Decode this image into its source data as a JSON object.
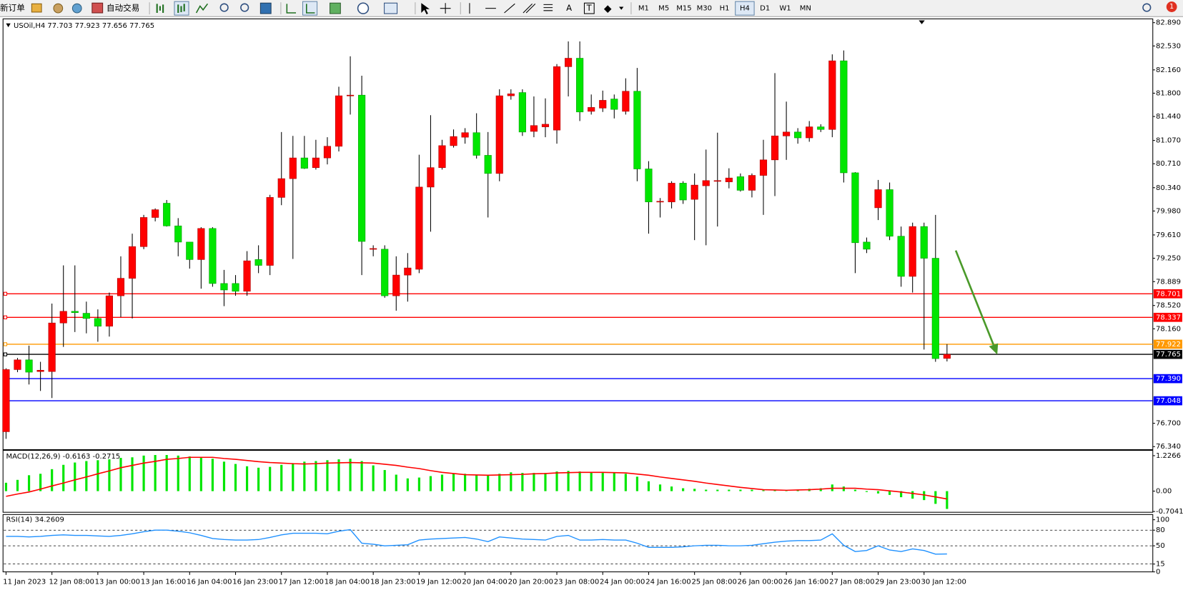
{
  "toolbar": {
    "new_order": "新订单",
    "auto_trading": "自动交易",
    "text_tools": [
      "A",
      "T"
    ],
    "timeframes": [
      "M1",
      "M5",
      "M15",
      "M30",
      "H1",
      "H4",
      "D1",
      "W1",
      "MN"
    ],
    "active_timeframe": "H4",
    "notifications": 1
  },
  "chart_data": [
    {
      "type": "candlestick",
      "title": "USOil,H4  77.703 77.923 77.656 77.765",
      "categories": [
        "11 Jan 2023",
        null,
        null,
        null,
        "12 Jan 08:00",
        null,
        null,
        null,
        "13 Jan 00:00",
        null,
        null,
        null,
        "13 Jan 16:00",
        null,
        null,
        null,
        "16 Jan 04:00",
        null,
        null,
        null,
        "16 Jan 23:00",
        null,
        null,
        null,
        "17 Jan 12:00",
        null,
        null,
        null,
        "18 Jan 04:00",
        null,
        null,
        null,
        "18 Jan 23:00",
        null,
        null,
        null,
        "19 Jan 12:00",
        null,
        null,
        null,
        "20 Jan 04:00",
        null,
        null,
        null,
        "20 Jan 20:00",
        null,
        null,
        null,
        "23 Jan 08:00",
        null,
        null,
        null,
        "24 Jan 00:00",
        null,
        null,
        null,
        "24 Jan 16:00",
        null,
        null,
        null,
        "25 Jan 08:00",
        null,
        null,
        null,
        "26 Jan 00:00",
        null,
        null,
        null,
        "26 Jan 16:00",
        null,
        null,
        null,
        "27 Jan 08:00",
        null,
        null,
        null,
        "29 Jan 23:00",
        null,
        null,
        null,
        "30 Jan 12:00",
        null,
        null
      ],
      "open": [
        76.57,
        77.53,
        77.68,
        77.5,
        77.5,
        78.25,
        78.43,
        78.4,
        78.32,
        78.2,
        78.67,
        78.94,
        79.43,
        79.88,
        80.1,
        79.75,
        79.5,
        79.23,
        79.71,
        78.86,
        78.86,
        78.74,
        79.23,
        79.14,
        80.19,
        80.48,
        80.8,
        80.65,
        80.8,
        80.98,
        81.76,
        81.77,
        79.39,
        79.39,
        78.67,
        78.99,
        79.08,
        80.35,
        80.65,
        80.99,
        81.12,
        81.19,
        80.84,
        80.56,
        81.76,
        81.81,
        81.21,
        81.28,
        81.23,
        82.21,
        82.34,
        81.52,
        81.57,
        81.71,
        81.52,
        81.83,
        80.63,
        80.12,
        80.12,
        80.41,
        80.16,
        80.37,
        80.44,
        80.43,
        80.51,
        80.3,
        80.53,
        80.77,
        81.14,
        81.2,
        81.11,
        81.28,
        81.24,
        82.3,
        80.57,
        79.5,
        80.03,
        80.31,
        79.59,
        78.97,
        79.74,
        79.25,
        77.703
      ],
      "high": [
        77.55,
        77.71,
        77.9,
        77.65,
        78.55,
        79.14,
        79.14,
        78.58,
        78.46,
        78.72,
        79.28,
        79.63,
        79.92,
        80.02,
        80.15,
        79.87,
        79.5,
        79.73,
        79.73,
        79.07,
        78.99,
        79.36,
        79.45,
        80.23,
        81.2,
        81.14,
        81.14,
        81.08,
        81.12,
        81.9,
        82.37,
        82.07,
        79.45,
        79.45,
        79.28,
        79.33,
        80.85,
        81.46,
        81.08,
        81.24,
        81.26,
        81.49,
        81.2,
        81.86,
        81.86,
        81.86,
        81.75,
        81.72,
        82.25,
        82.6,
        82.6,
        81.78,
        81.84,
        81.78,
        82.03,
        82.19,
        80.75,
        80.18,
        80.44,
        80.44,
        80.56,
        80.93,
        81.19,
        80.64,
        80.56,
        80.56,
        81.08,
        82.11,
        81.67,
        81.26,
        81.37,
        81.32,
        82.4,
        82.46,
        80.58,
        79.57,
        80.46,
        80.42,
        79.74,
        79.8,
        79.8,
        79.92,
        77.923
      ],
      "low": [
        76.46,
        77.49,
        77.3,
        77.2,
        77.09,
        77.88,
        78.11,
        78.09,
        77.96,
        78.04,
        78.34,
        78.32,
        79.39,
        79.82,
        79.74,
        79.28,
        79.09,
        78.78,
        78.81,
        78.51,
        78.67,
        78.67,
        79.02,
        78.99,
        80.07,
        79.24,
        80.63,
        80.62,
        80.7,
        80.9,
        81.47,
        78.99,
        79.28,
        78.64,
        78.44,
        78.58,
        79.02,
        79.66,
        80.62,
        80.96,
        81.02,
        80.79,
        79.88,
        80.44,
        81.7,
        81.14,
        81.12,
        81.12,
        81.02,
        81.75,
        81.37,
        81.47,
        81.51,
        81.41,
        81.47,
        80.44,
        79.63,
        79.88,
        80.02,
        80.09,
        79.53,
        79.45,
        79.74,
        80.33,
        80.28,
        80.19,
        79.92,
        80.21,
        80.77,
        81.02,
        81.05,
        81.2,
        81.12,
        80.42,
        79.02,
        79.33,
        79.84,
        79.53,
        78.81,
        78.72,
        77.84,
        77.65,
        77.656
      ],
      "close": [
        77.53,
        77.68,
        77.49,
        77.52,
        78.25,
        78.43,
        78.41,
        78.32,
        78.2,
        78.67,
        78.94,
        79.43,
        79.88,
        80.0,
        79.75,
        79.5,
        79.23,
        79.71,
        78.86,
        78.76,
        78.74,
        79.21,
        79.14,
        80.19,
        80.48,
        80.8,
        80.64,
        80.8,
        80.98,
        81.76,
        81.77,
        79.51,
        79.4,
        78.67,
        78.99,
        79.1,
        80.35,
        80.65,
        80.99,
        81.13,
        81.19,
        80.84,
        80.56,
        81.76,
        81.79,
        81.2,
        81.3,
        81.32,
        82.21,
        82.34,
        81.51,
        81.58,
        81.69,
        81.55,
        81.83,
        80.63,
        80.12,
        80.13,
        80.41,
        80.15,
        80.38,
        80.45,
        80.45,
        80.49,
        80.3,
        80.53,
        80.77,
        81.14,
        81.2,
        81.11,
        81.28,
        81.24,
        82.3,
        80.57,
        79.49,
        79.39,
        80.31,
        79.59,
        78.97,
        79.74,
        79.25,
        77.7,
        77.765
      ],
      "up_color": "#ff0000",
      "down_color": "#00e600",
      "wick_color": "#000000",
      "ylim": [
        76.293,
        82.948
      ],
      "yticks": [
        {
          "value": 82.89,
          "label": "82.890"
        },
        {
          "value": 82.53,
          "label": "82.530"
        },
        {
          "value": 82.16,
          "label": "82.160"
        },
        {
          "value": 81.8,
          "label": "81.800"
        },
        {
          "value": 81.44,
          "label": "81.440"
        },
        {
          "value": 81.07,
          "label": "81.070"
        },
        {
          "value": 80.71,
          "label": "80.710"
        },
        {
          "value": 80.34,
          "label": "80.340"
        },
        {
          "value": 79.98,
          "label": "79.980"
        },
        {
          "value": 79.61,
          "label": "79.610"
        },
        {
          "value": 79.25,
          "label": "79.250"
        },
        78.889,
        {
          "value": 78.52,
          "label": "78.520"
        },
        {
          "value": 78.16,
          "label": "78.160"
        },
        {
          "value": 76.7,
          "label": "76.700"
        },
        {
          "value": 76.34,
          "label": "76.340"
        }
      ],
      "levels": [
        {
          "value": 78.701,
          "color": "#ff0000"
        },
        {
          "value": 78.337,
          "color": "#ff0000"
        },
        {
          "value": 77.922,
          "color": "#ff9900"
        },
        {
          "value": 77.765,
          "color": "#000000"
        },
        {
          "value": 77.39,
          "label": "77.390",
          "color": "#0000ff"
        },
        {
          "value": 77.048,
          "color": "#0000ff"
        }
      ]
    },
    {
      "type": "macd",
      "title": "MACD(12,26,9) -0.6163 -0.2715",
      "histogram": {
        "color": "#00e600",
        "values": [
          0.29,
          0.39,
          0.55,
          0.6,
          0.76,
          0.91,
          0.99,
          1.04,
          1.07,
          1.1,
          1.15,
          1.17,
          1.23,
          1.25,
          1.25,
          1.23,
          1.2,
          1.17,
          1.12,
          1.02,
          0.94,
          0.86,
          0.81,
          0.84,
          0.91,
          0.97,
          1.02,
          1.04,
          1.07,
          1.1,
          1.12,
          1.04,
          0.89,
          0.73,
          0.57,
          0.44,
          0.47,
          0.52,
          0.57,
          0.6,
          0.6,
          0.57,
          0.55,
          0.6,
          0.65,
          0.63,
          0.63,
          0.63,
          0.68,
          0.7,
          0.68,
          0.65,
          0.63,
          0.63,
          0.6,
          0.5,
          0.34,
          0.23,
          0.16,
          0.1,
          0.08,
          0.05,
          0.05,
          0.05,
          0.05,
          0.05,
          0.03,
          0.03,
          0.03,
          0.03,
          0.08,
          0.1,
          0.23,
          0.16,
          0.05,
          -0.03,
          -0.08,
          -0.13,
          -0.21,
          -0.26,
          -0.31,
          -0.44,
          -0.6163
        ]
      },
      "signal": {
        "color": "#ff0000",
        "values": [
          -0.18,
          -0.1,
          -0.03,
          0.07,
          0.18,
          0.28,
          0.39,
          0.49,
          0.6,
          0.7,
          0.81,
          0.89,
          0.97,
          1.03,
          1.1,
          1.13,
          1.17,
          1.17,
          1.17,
          1.13,
          1.1,
          1.06,
          1.02,
          0.99,
          0.97,
          0.95,
          0.94,
          0.95,
          0.97,
          0.98,
          0.99,
          0.98,
          0.97,
          0.93,
          0.89,
          0.83,
          0.78,
          0.71,
          0.65,
          0.61,
          0.57,
          0.56,
          0.55,
          0.56,
          0.57,
          0.58,
          0.6,
          0.61,
          0.63,
          0.64,
          0.65,
          0.65,
          0.65,
          0.64,
          0.63,
          0.59,
          0.55,
          0.49,
          0.44,
          0.39,
          0.34,
          0.28,
          0.23,
          0.18,
          0.13,
          0.09,
          0.05,
          0.04,
          0.03,
          0.04,
          0.05,
          0.07,
          0.1,
          0.1,
          0.1,
          0.07,
          0.05,
          0.01,
          -0.03,
          -0.08,
          -0.13,
          -0.2,
          -0.2715
        ]
      },
      "ylim": [
        -0.731,
        1.409
      ],
      "yticks": [
        1.2266,
        {
          "value": 0,
          "label": "0.00"
        },
        -0.7041
      ]
    },
    {
      "type": "line",
      "title": "RSI(14) 34.2609",
      "color": "#1e90ff",
      "values": [
        68,
        68,
        67,
        68,
        70,
        71,
        70,
        70,
        69,
        68,
        70,
        73,
        77,
        80,
        80,
        78,
        75,
        70,
        64,
        62,
        61,
        61,
        62,
        66,
        71,
        74,
        74,
        74,
        73,
        78,
        81,
        55,
        53,
        50,
        51,
        52,
        61,
        63,
        64,
        65,
        66,
        63,
        58,
        67,
        65,
        63,
        62,
        61,
        68,
        70,
        61,
        61,
        62,
        61,
        61,
        55,
        47,
        47,
        47,
        48,
        50,
        51,
        51,
        50,
        50,
        51,
        54,
        57,
        59,
        60,
        60,
        61,
        73,
        51,
        39,
        41,
        50,
        42,
        39,
        44,
        41,
        34,
        34.2609
      ],
      "ylim": [
        0,
        110
      ],
      "yticks": [
        100,
        80,
        50,
        15,
        0
      ],
      "levels": [
        80,
        50,
        15
      ]
    }
  ]
}
